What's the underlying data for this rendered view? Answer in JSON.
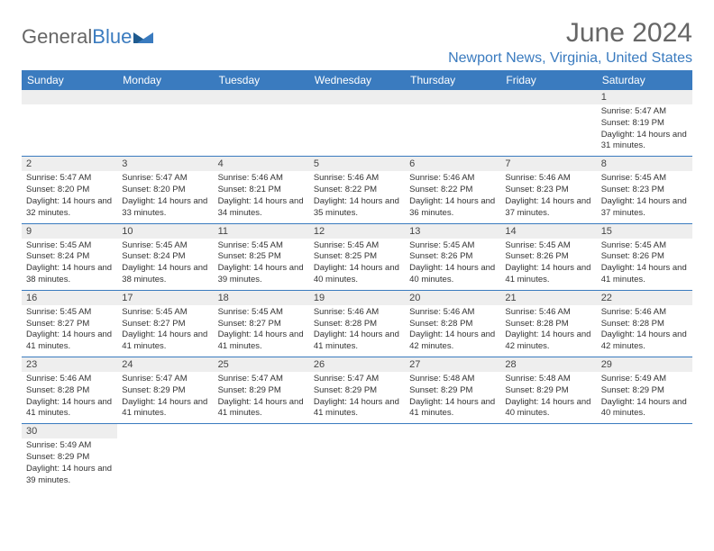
{
  "logo": {
    "general": "General",
    "blue": "Blue"
  },
  "title": "June 2024",
  "location": "Newport News, Virginia, United States",
  "accent_color": "#3a7bbf",
  "header_bg": "#3a7bbf",
  "day_num_bg": "#eeeeee",
  "row_border_color": "#3a7bbf",
  "text_color": "#333333",
  "weekdays": [
    "Sunday",
    "Monday",
    "Tuesday",
    "Wednesday",
    "Thursday",
    "Friday",
    "Saturday"
  ],
  "cells": [
    {
      "day": "",
      "lines": []
    },
    {
      "day": "",
      "lines": []
    },
    {
      "day": "",
      "lines": []
    },
    {
      "day": "",
      "lines": []
    },
    {
      "day": "",
      "lines": []
    },
    {
      "day": "",
      "lines": []
    },
    {
      "day": "1",
      "lines": [
        "Sunrise: 5:47 AM",
        "Sunset: 8:19 PM",
        "Daylight: 14 hours and 31 minutes."
      ]
    },
    {
      "day": "2",
      "lines": [
        "Sunrise: 5:47 AM",
        "Sunset: 8:20 PM",
        "Daylight: 14 hours and 32 minutes."
      ]
    },
    {
      "day": "3",
      "lines": [
        "Sunrise: 5:47 AM",
        "Sunset: 8:20 PM",
        "Daylight: 14 hours and 33 minutes."
      ]
    },
    {
      "day": "4",
      "lines": [
        "Sunrise: 5:46 AM",
        "Sunset: 8:21 PM",
        "Daylight: 14 hours and 34 minutes."
      ]
    },
    {
      "day": "5",
      "lines": [
        "Sunrise: 5:46 AM",
        "Sunset: 8:22 PM",
        "Daylight: 14 hours and 35 minutes."
      ]
    },
    {
      "day": "6",
      "lines": [
        "Sunrise: 5:46 AM",
        "Sunset: 8:22 PM",
        "Daylight: 14 hours and 36 minutes."
      ]
    },
    {
      "day": "7",
      "lines": [
        "Sunrise: 5:46 AM",
        "Sunset: 8:23 PM",
        "Daylight: 14 hours and 37 minutes."
      ]
    },
    {
      "day": "8",
      "lines": [
        "Sunrise: 5:45 AM",
        "Sunset: 8:23 PM",
        "Daylight: 14 hours and 37 minutes."
      ]
    },
    {
      "day": "9",
      "lines": [
        "Sunrise: 5:45 AM",
        "Sunset: 8:24 PM",
        "Daylight: 14 hours and 38 minutes."
      ]
    },
    {
      "day": "10",
      "lines": [
        "Sunrise: 5:45 AM",
        "Sunset: 8:24 PM",
        "Daylight: 14 hours and 38 minutes."
      ]
    },
    {
      "day": "11",
      "lines": [
        "Sunrise: 5:45 AM",
        "Sunset: 8:25 PM",
        "Daylight: 14 hours and 39 minutes."
      ]
    },
    {
      "day": "12",
      "lines": [
        "Sunrise: 5:45 AM",
        "Sunset: 8:25 PM",
        "Daylight: 14 hours and 40 minutes."
      ]
    },
    {
      "day": "13",
      "lines": [
        "Sunrise: 5:45 AM",
        "Sunset: 8:26 PM",
        "Daylight: 14 hours and 40 minutes."
      ]
    },
    {
      "day": "14",
      "lines": [
        "Sunrise: 5:45 AM",
        "Sunset: 8:26 PM",
        "Daylight: 14 hours and 41 minutes."
      ]
    },
    {
      "day": "15",
      "lines": [
        "Sunrise: 5:45 AM",
        "Sunset: 8:26 PM",
        "Daylight: 14 hours and 41 minutes."
      ]
    },
    {
      "day": "16",
      "lines": [
        "Sunrise: 5:45 AM",
        "Sunset: 8:27 PM",
        "Daylight: 14 hours and 41 minutes."
      ]
    },
    {
      "day": "17",
      "lines": [
        "Sunrise: 5:45 AM",
        "Sunset: 8:27 PM",
        "Daylight: 14 hours and 41 minutes."
      ]
    },
    {
      "day": "18",
      "lines": [
        "Sunrise: 5:45 AM",
        "Sunset: 8:27 PM",
        "Daylight: 14 hours and 41 minutes."
      ]
    },
    {
      "day": "19",
      "lines": [
        "Sunrise: 5:46 AM",
        "Sunset: 8:28 PM",
        "Daylight: 14 hours and 41 minutes."
      ]
    },
    {
      "day": "20",
      "lines": [
        "Sunrise: 5:46 AM",
        "Sunset: 8:28 PM",
        "Daylight: 14 hours and 42 minutes."
      ]
    },
    {
      "day": "21",
      "lines": [
        "Sunrise: 5:46 AM",
        "Sunset: 8:28 PM",
        "Daylight: 14 hours and 42 minutes."
      ]
    },
    {
      "day": "22",
      "lines": [
        "Sunrise: 5:46 AM",
        "Sunset: 8:28 PM",
        "Daylight: 14 hours and 42 minutes."
      ]
    },
    {
      "day": "23",
      "lines": [
        "Sunrise: 5:46 AM",
        "Sunset: 8:28 PM",
        "Daylight: 14 hours and 41 minutes."
      ]
    },
    {
      "day": "24",
      "lines": [
        "Sunrise: 5:47 AM",
        "Sunset: 8:29 PM",
        "Daylight: 14 hours and 41 minutes."
      ]
    },
    {
      "day": "25",
      "lines": [
        "Sunrise: 5:47 AM",
        "Sunset: 8:29 PM",
        "Daylight: 14 hours and 41 minutes."
      ]
    },
    {
      "day": "26",
      "lines": [
        "Sunrise: 5:47 AM",
        "Sunset: 8:29 PM",
        "Daylight: 14 hours and 41 minutes."
      ]
    },
    {
      "day": "27",
      "lines": [
        "Sunrise: 5:48 AM",
        "Sunset: 8:29 PM",
        "Daylight: 14 hours and 41 minutes."
      ]
    },
    {
      "day": "28",
      "lines": [
        "Sunrise: 5:48 AM",
        "Sunset: 8:29 PM",
        "Daylight: 14 hours and 40 minutes."
      ]
    },
    {
      "day": "29",
      "lines": [
        "Sunrise: 5:49 AM",
        "Sunset: 8:29 PM",
        "Daylight: 14 hours and 40 minutes."
      ]
    },
    {
      "day": "30",
      "lines": [
        "Sunrise: 5:49 AM",
        "Sunset: 8:29 PM",
        "Daylight: 14 hours and 39 minutes."
      ]
    },
    {
      "day": "",
      "lines": []
    },
    {
      "day": "",
      "lines": []
    },
    {
      "day": "",
      "lines": []
    },
    {
      "day": "",
      "lines": []
    },
    {
      "day": "",
      "lines": []
    },
    {
      "day": "",
      "lines": []
    }
  ]
}
